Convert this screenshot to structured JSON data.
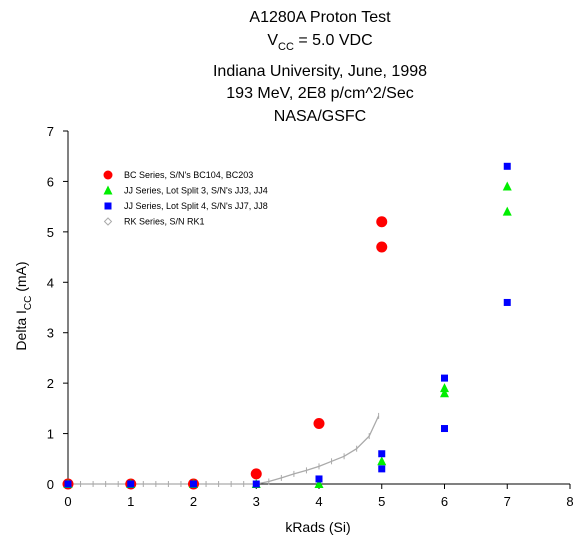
{
  "chart_data": {
    "type": "scatter",
    "title_lines": [
      "A1280A Proton Test",
      "Indiana University, June, 1998",
      "193 MeV, 2E8 p/cm^2/Sec",
      "NASA/GSFC"
    ],
    "vcc_label": {
      "main": "V",
      "sub": "CC",
      "rest": " = 5.0 VDC"
    },
    "xlabel": "kRads (Si)",
    "ylabel": {
      "main": "Delta I",
      "sub": "CC",
      "rest": " (mA)"
    },
    "xlim": [
      0,
      8
    ],
    "ylim": [
      0,
      7
    ],
    "xticks": [
      "0",
      "1",
      "2",
      "3",
      "4",
      "5",
      "6",
      "7",
      "8"
    ],
    "yticks": [
      "0",
      "1",
      "2",
      "3",
      "4",
      "5",
      "6",
      "7"
    ],
    "grid": false,
    "legend_position": "top-left",
    "series": [
      {
        "name": "BC Series, S/N's BC104, BC203",
        "marker": "circle",
        "color": "#ff0000",
        "points": [
          [
            0,
            0
          ],
          [
            1,
            0
          ],
          [
            2,
            0
          ],
          [
            3,
            0.2
          ],
          [
            4,
            1.2
          ],
          [
            5,
            4.7
          ],
          [
            5,
            5.2
          ]
        ]
      },
      {
        "name": "JJ Series, Lot Split 3, S/N's JJ3, JJ4",
        "marker": "triangle",
        "color": "#00ee00",
        "points": [
          [
            0,
            0
          ],
          [
            1,
            0
          ],
          [
            2,
            0
          ],
          [
            3,
            0
          ],
          [
            4,
            0
          ],
          [
            5,
            0.45
          ],
          [
            6,
            1.8
          ],
          [
            6,
            1.9
          ],
          [
            7,
            5.4
          ],
          [
            7,
            5.9
          ]
        ]
      },
      {
        "name": "JJ Series, Lot Split 4, S/N's JJ7, JJ8",
        "marker": "square",
        "color": "#0000ff",
        "points": [
          [
            0,
            0
          ],
          [
            1,
            0
          ],
          [
            2,
            0
          ],
          [
            3,
            0
          ],
          [
            4,
            0.1
          ],
          [
            5,
            0.3
          ],
          [
            5,
            0.6
          ],
          [
            6,
            1.1
          ],
          [
            6,
            2.1
          ],
          [
            7,
            3.6
          ],
          [
            7,
            6.3
          ]
        ]
      },
      {
        "name": "RK Series, S/N RK1",
        "marker": "diamond-line",
        "color": "#aaaaaa",
        "points": [
          [
            0,
            0
          ],
          [
            0.2,
            0
          ],
          [
            0.4,
            0
          ],
          [
            0.6,
            0
          ],
          [
            0.8,
            0
          ],
          [
            1,
            0
          ],
          [
            1.2,
            0
          ],
          [
            1.4,
            0
          ],
          [
            1.6,
            0
          ],
          [
            1.8,
            0
          ],
          [
            2,
            0
          ],
          [
            2.2,
            0
          ],
          [
            2.4,
            0
          ],
          [
            2.6,
            0
          ],
          [
            2.8,
            0
          ],
          [
            3,
            0
          ],
          [
            3.2,
            0.05
          ],
          [
            3.4,
            0.12
          ],
          [
            3.6,
            0.2
          ],
          [
            3.8,
            0.27
          ],
          [
            4,
            0.35
          ],
          [
            4.2,
            0.45
          ],
          [
            4.4,
            0.55
          ],
          [
            4.6,
            0.7
          ],
          [
            4.8,
            0.95
          ],
          [
            4.95,
            1.35
          ]
        ]
      }
    ]
  }
}
